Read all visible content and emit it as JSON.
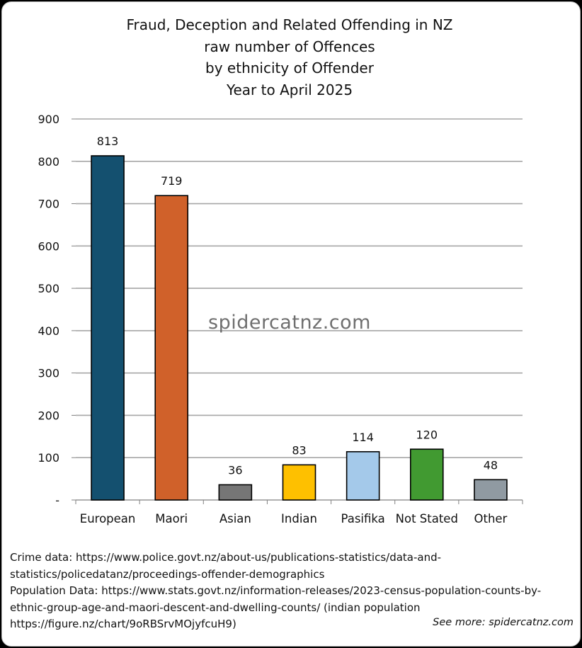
{
  "chart_data": {
    "type": "bar",
    "title_lines": [
      "Fraud, Deception and Related Offending in NZ",
      "raw number of Offences",
      "by ethnicity of Offender",
      "Year to April 2025"
    ],
    "categories": [
      "European",
      "Maori",
      "Asian",
      "Indian",
      "Pasifika",
      "Not Stated",
      "Other"
    ],
    "values": [
      813,
      719,
      36,
      83,
      114,
      120,
      48
    ],
    "colors": [
      "#14506f",
      "#d0612a",
      "#767676",
      "#fec000",
      "#a4c9ea",
      "#419a31",
      "#909aa2"
    ],
    "ylim": [
      0,
      900
    ],
    "yticks": [
      0,
      100,
      200,
      300,
      400,
      500,
      600,
      700,
      800,
      900
    ],
    "ytick_labels": [
      "-",
      "100",
      "200",
      "300",
      "400",
      "500",
      "600",
      "700",
      "800",
      "900"
    ],
    "grid": true,
    "xlabel": "",
    "ylabel": ""
  },
  "watermark": "spidercatnz.com",
  "source_lines": [
    "Crime data: https://www.police.govt.nz/about-us/publications-statistics/data-and-",
    "statistics/policedatanz/proceedings-offender-demographics",
    "Population Data: https://www.stats.govt.nz/information-releases/2023-census-population-counts-by-",
    "ethnic-group-age-and-maori-descent-and-dwelling-counts/ (indian population",
    "https://figure.nz/chart/9oRBSrvMOjyfcuH9)"
  ],
  "see_more": "See more: spidercatnz.com"
}
